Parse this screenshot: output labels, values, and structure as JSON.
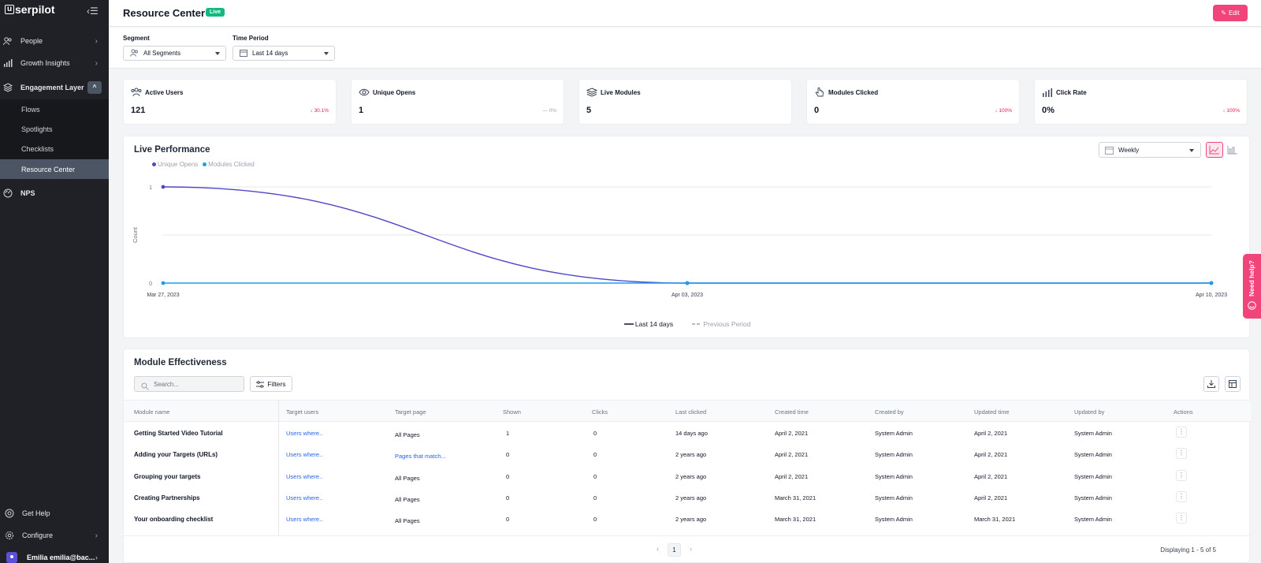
{
  "brand": {
    "logo_letter": "u",
    "logo_rest": "serpilot"
  },
  "sidebar": {
    "items": [
      {
        "label": "People",
        "icon": "people-icon"
      },
      {
        "label": "Growth Insights",
        "icon": "bar-chart-icon"
      },
      {
        "label": "Engagement Layer",
        "icon": "layers-icon"
      },
      {
        "label": "NPS",
        "icon": "gauge-icon"
      }
    ],
    "sub_items": [
      "Flows",
      "Spotlights",
      "Checklists",
      "Resource Center"
    ],
    "active_sub": "Resource Center",
    "bottom": [
      {
        "label": "Get Help",
        "icon": "lifebuoy-icon"
      },
      {
        "label": "Configure",
        "icon": "gear-icon"
      }
    ],
    "user": "Emilia emilia@bac..."
  },
  "header": {
    "title": "Resource Center",
    "badge": "Live",
    "edit_label": "Edit"
  },
  "filters": {
    "segment_label": "Segment",
    "segment_value": "All Segments",
    "period_label": "Time Period",
    "period_value": "Last 14 days"
  },
  "kpis": [
    {
      "title": "Active Users",
      "value": "121",
      "delta": "30.1%",
      "trend": "down",
      "icon": "users-icon"
    },
    {
      "title": "Unique Opens",
      "value": "1",
      "delta": "0%",
      "trend": "neutral",
      "icon": "eye-icon"
    },
    {
      "title": "Live Modules",
      "value": "5",
      "delta": "",
      "trend": "none",
      "icon": "layers-icon"
    },
    {
      "title": "Modules Clicked",
      "value": "0",
      "delta": "100%",
      "trend": "down",
      "icon": "pointer-icon"
    },
    {
      "title": "Click Rate",
      "value": "0%",
      "delta": "100%",
      "trend": "down",
      "icon": "bar-chart-icon"
    }
  ],
  "performance": {
    "title": "Live Performance",
    "interval": "Weekly",
    "legend_period": {
      "current": "Last 14 days",
      "previous": "Previous Period"
    }
  },
  "chart_data": {
    "type": "line",
    "categories": [
      "Mar 27, 2023",
      "Apr 03, 2023",
      "Apr 10, 2023"
    ],
    "series": [
      {
        "name": "Unique Opens",
        "values": [
          1,
          0,
          0
        ],
        "color": "#4f46c8"
      },
      {
        "name": "Modules Clicked",
        "values": [
          0,
          0,
          0
        ],
        "color": "#1e9bf0"
      }
    ],
    "ylabel": "Count",
    "yticks": [
      0,
      1
    ],
    "ylim": [
      0,
      1
    ],
    "grid": true,
    "legend": "top-left"
  },
  "table": {
    "title": "Module Effectiveness",
    "search_placeholder": "Search...",
    "filters_label": "Filters",
    "columns": [
      "Module name",
      "Target users",
      "Target page",
      "Shown",
      "Clicks",
      "Last clicked",
      "Created time",
      "Created by",
      "Updated time",
      "Updated by",
      "Actions"
    ],
    "rows": [
      [
        "Getting Started Video Tutorial",
        "Users where..",
        "All Pages",
        "1",
        "0",
        "14 days ago",
        "April 2, 2021",
        "System Admin",
        "April 2, 2021",
        "System Admin"
      ],
      [
        "Adding your Targets (URLs)",
        "Users where..",
        "Pages that match...",
        "0",
        "0",
        "2 years ago",
        "April 2, 2021",
        "System Admin",
        "April 2, 2021",
        "System Admin"
      ],
      [
        "Grouping your targets",
        "Users where..",
        "All Pages",
        "0",
        "0",
        "2 years ago",
        "April 2, 2021",
        "System Admin",
        "April 2, 2021",
        "System Admin"
      ],
      [
        "Creating Partnerships",
        "Users where..",
        "All Pages",
        "0",
        "0",
        "2 years ago",
        "March 31, 2021",
        "System Admin",
        "April 2, 2021",
        "System Admin"
      ],
      [
        "Your onboarding checklist",
        "Users where..",
        "All Pages",
        "0",
        "0",
        "2 years ago",
        "March 31, 2021",
        "System Admin",
        "March 31, 2021",
        "System Admin"
      ]
    ],
    "page": "1",
    "displaying": "Displaying 1 - 5 of 5"
  },
  "need_help": "Need help?",
  "colors": {
    "accent": "#f0447a",
    "live": "#10b981",
    "sidebar": "#1f2126",
    "link": "#2563eb"
  }
}
